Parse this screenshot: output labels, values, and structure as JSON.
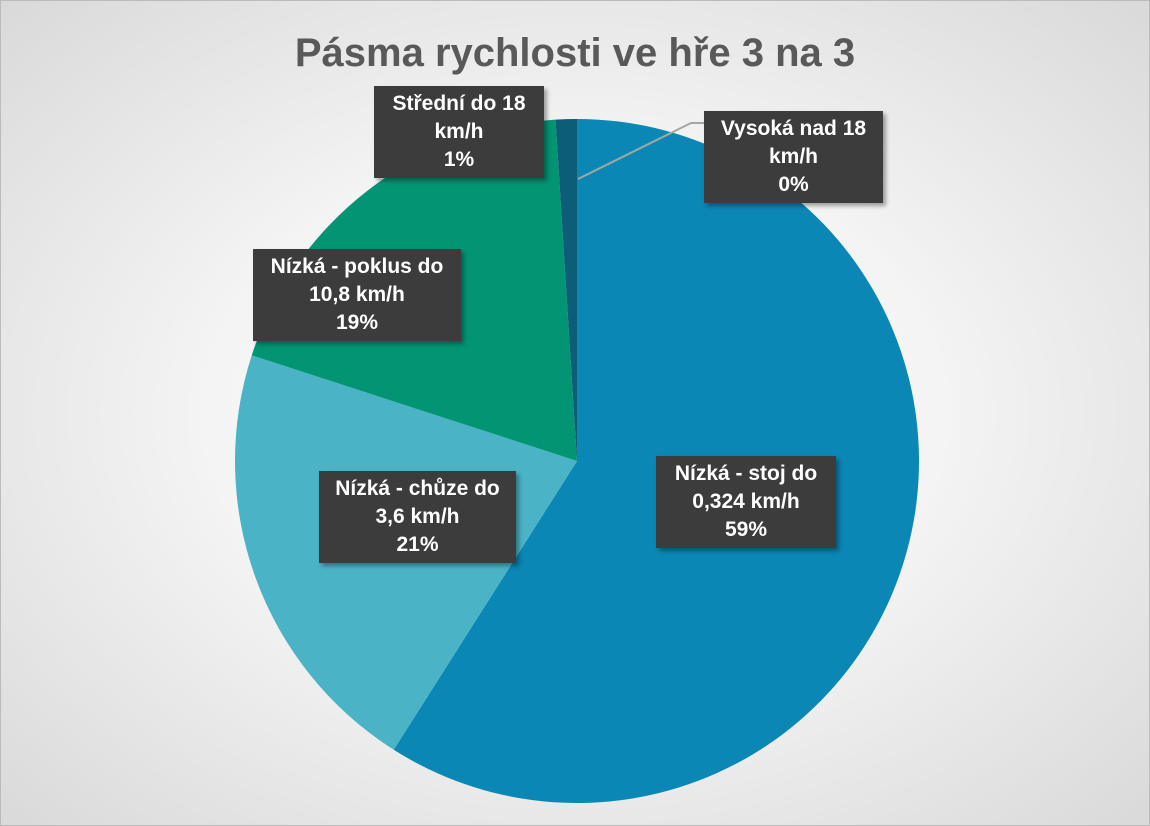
{
  "chart_data": {
    "type": "pie",
    "title": "Pásma rychlosti ve hře 3 na 3",
    "categories": [
      "Nízká - stoj do 0,324 km/h",
      "Nízká - chůze do 3,6 km/h",
      "Nízká - poklus do 10,8 km/h",
      "Střední do 18 km/h",
      "Vysoká nad 18 km/h"
    ],
    "values": [
      59,
      21,
      19,
      1,
      0
    ],
    "value_labels": [
      "59%",
      "21%",
      "19%",
      "1%",
      "0%"
    ],
    "colors": [
      "#0a87b4",
      "#4ab3c6",
      "#039473",
      "#0b5d78",
      "#1d4e6e"
    ]
  }
}
